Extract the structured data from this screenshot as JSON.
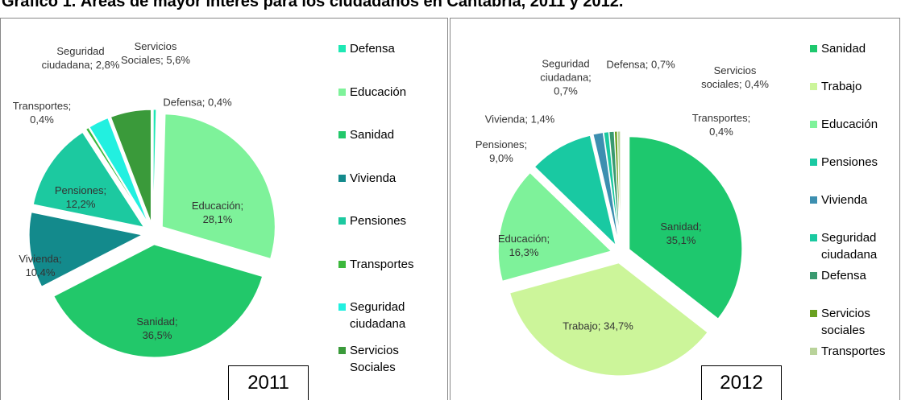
{
  "title": "Gráfico 1. Áreas de mayor interés para los ciudadanos en Cantabria, 2011 y 2012.",
  "chart_data": [
    {
      "type": "pie",
      "annotation": "2011",
      "legend": "right",
      "categories": [
        "Defensa",
        "Educación",
        "Sanidad",
        "Vivienda",
        "Pensiones",
        "Transportes",
        "Seguridad ciudadana",
        "Servicios Sociales"
      ],
      "values": [
        0.4,
        28.1,
        36.5,
        10.4,
        12.2,
        0.4,
        2.8,
        5.6
      ],
      "value_labels": [
        "Defensa; 0,4%",
        "Educación; 28,1%",
        "Sanidad; 36,5%",
        "Vivienda; 10,4%",
        "Pensiones; 12,2%",
        "Transportes; 0,4%",
        "Seguridad ciudadana; 2,8%",
        "Servicios Sociales; 5,6%"
      ],
      "colors": [
        "#1ee8b4",
        "#7ef29a",
        "#22c86a",
        "#138a8c",
        "#1cc9a0",
        "#3cb83c",
        "#22f0e0",
        "#3a9a3a"
      ]
    },
    {
      "type": "pie",
      "annotation": "2012",
      "legend": "right",
      "categories": [
        "Sanidad",
        "Trabajo",
        "Educación",
        "Pensiones",
        "Vivienda",
        "Seguridad ciudadana",
        "Defensa",
        "Servicios sociales",
        "Transportes"
      ],
      "values": [
        35.1,
        34.7,
        16.3,
        9.0,
        1.4,
        0.7,
        0.7,
        0.4,
        0.4
      ],
      "value_labels": [
        "Sanidad; 35,1%",
        "Trabajo; 34,7%",
        "Educación; 16,3%",
        "Pensiones; 9,0%",
        "Vivienda; 1,4%",
        "Seguridad ciudadana; 0,7%",
        "Defensa; 0,7%",
        "Servicios sociales; 0,4%",
        "Transportes; 0,4%"
      ],
      "colors": [
        "#1ec86e",
        "#ccf59a",
        "#7ef29a",
        "#19c9a2",
        "#3d8fb0",
        "#1ac9a0",
        "#3a9a70",
        "#6aa020",
        "#b9d39a"
      ]
    }
  ]
}
